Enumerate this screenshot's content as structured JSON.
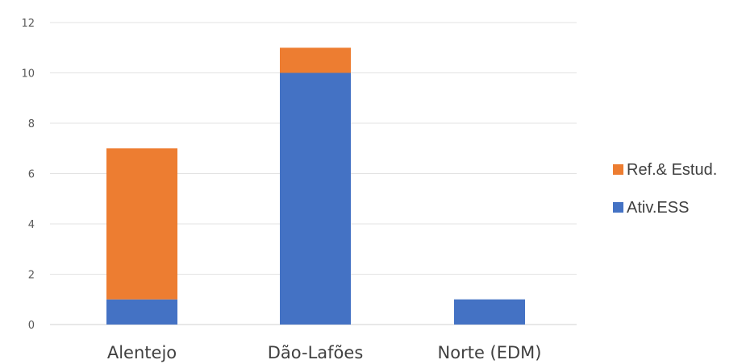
{
  "chart_data": {
    "type": "bar",
    "stacked": true,
    "categories": [
      "Alentejo",
      "Dão-Lafões",
      "Norte (EDM)"
    ],
    "series": [
      {
        "name": "Ativ.ESS",
        "values": [
          1,
          10,
          1
        ],
        "color": "#4472C4"
      },
      {
        "name": "Ref.& Estud.",
        "values": [
          6,
          1,
          0
        ],
        "color": "#ED7D31"
      }
    ],
    "ylim": [
      0,
      12
    ],
    "yticks": [
      0,
      2,
      4,
      6,
      8,
      10,
      12
    ],
    "grid": true,
    "legend": {
      "placement": "right",
      "order": [
        "Ref.& Estud.",
        "Ativ.ESS"
      ]
    },
    "title": "",
    "xlabel": "",
    "ylabel": ""
  }
}
